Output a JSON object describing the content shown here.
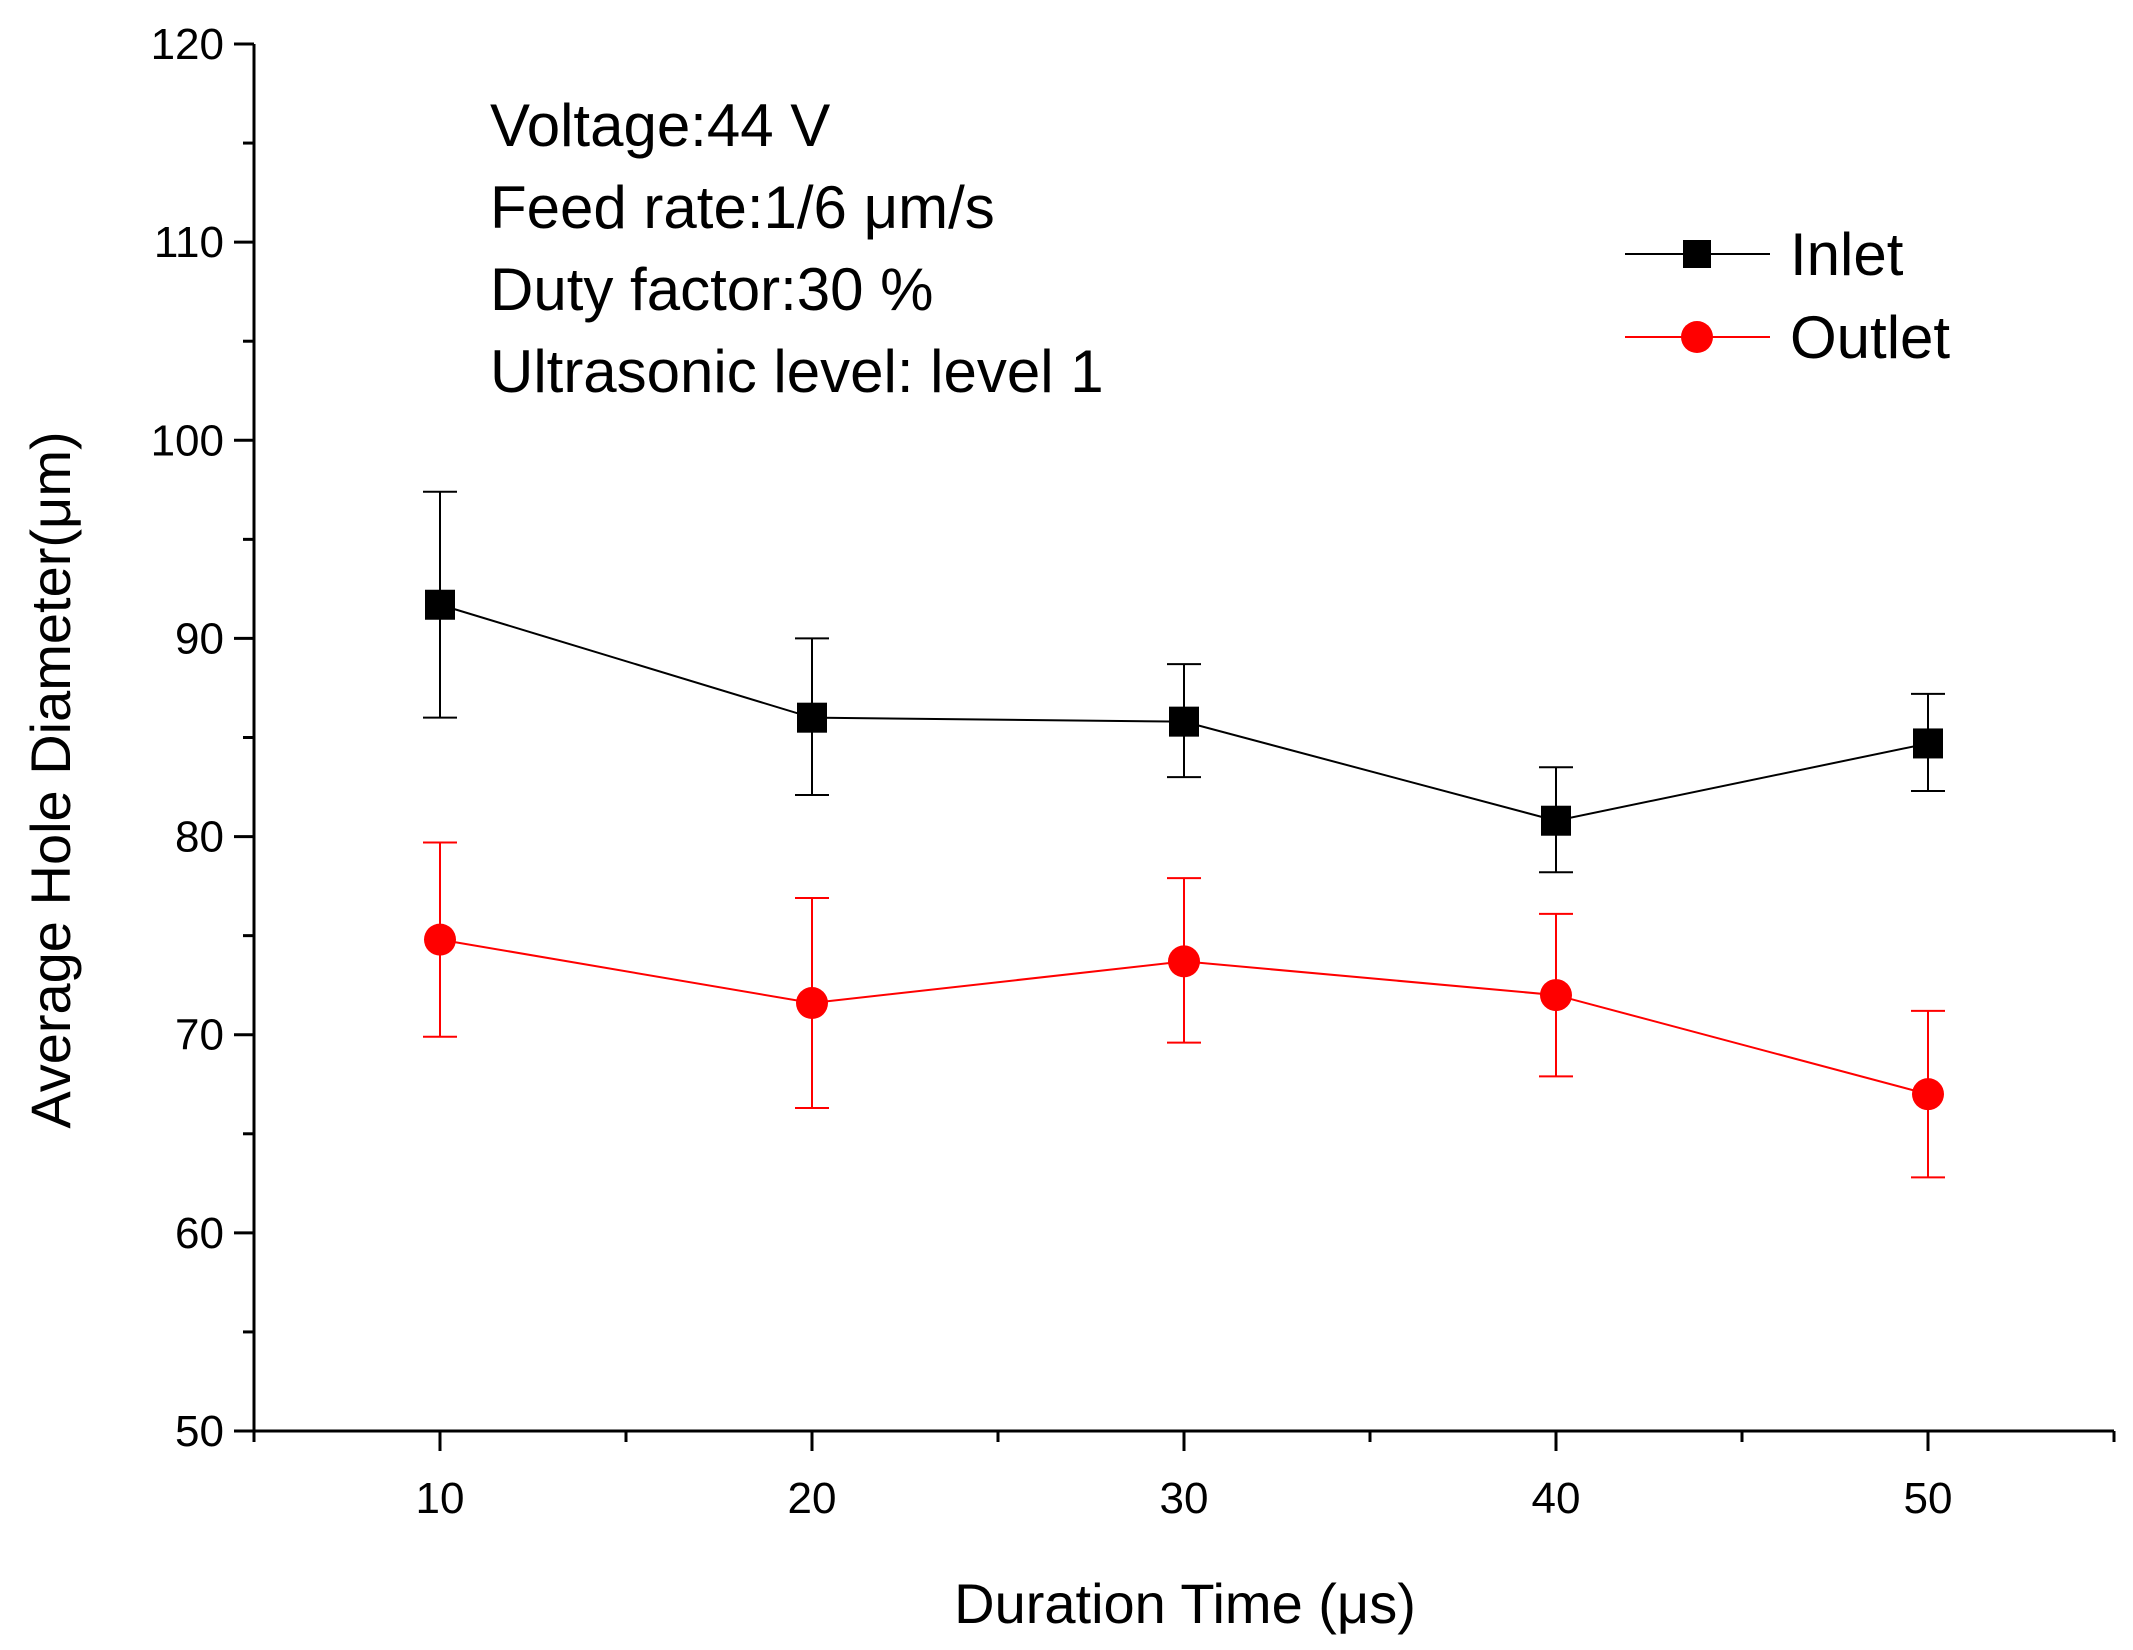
{
  "chart_data": {
    "type": "line",
    "title": "",
    "xlabel": "Duration Time (μs)",
    "ylabel": "Average Hole Diameter(μm)",
    "xlim": [
      5,
      55
    ],
    "ylim": [
      50,
      120
    ],
    "xticks": [
      10,
      20,
      30,
      40,
      50
    ],
    "xtick_labels": [
      "10",
      "20",
      "30",
      "40",
      "50"
    ],
    "xminor": [
      5,
      15,
      25,
      35,
      45,
      55
    ],
    "yticks": [
      50,
      60,
      70,
      80,
      90,
      100,
      110,
      120
    ],
    "ytick_labels": [
      "50",
      "60",
      "70",
      "80",
      "90",
      "100",
      "110",
      "120"
    ],
    "yminor": [
      55,
      65,
      75,
      85,
      95,
      105,
      115
    ],
    "grid": false,
    "legend_position": "top-right",
    "annotations": [
      "Voltage:44 V",
      "Feed rate:1/6 μm/s",
      "Duty factor:30 %",
      "Ultrasonic level: level 1"
    ],
    "x": [
      10,
      20,
      30,
      40,
      50
    ],
    "series": [
      {
        "name": "Inlet",
        "color": "#000000",
        "marker": "square",
        "values": [
          91.7,
          86.0,
          85.8,
          80.8,
          84.7
        ],
        "err_low": [
          86.0,
          82.1,
          83.0,
          78.2,
          82.3
        ],
        "err_high": [
          97.4,
          90.0,
          88.7,
          83.5,
          87.2
        ]
      },
      {
        "name": "Outlet",
        "color": "#ff0000",
        "marker": "circle",
        "values": [
          74.8,
          71.6,
          73.7,
          72.0,
          67.0
        ],
        "err_low": [
          69.9,
          66.3,
          69.6,
          67.9,
          62.8
        ],
        "err_high": [
          79.7,
          76.9,
          77.9,
          76.1,
          71.2
        ]
      }
    ]
  }
}
